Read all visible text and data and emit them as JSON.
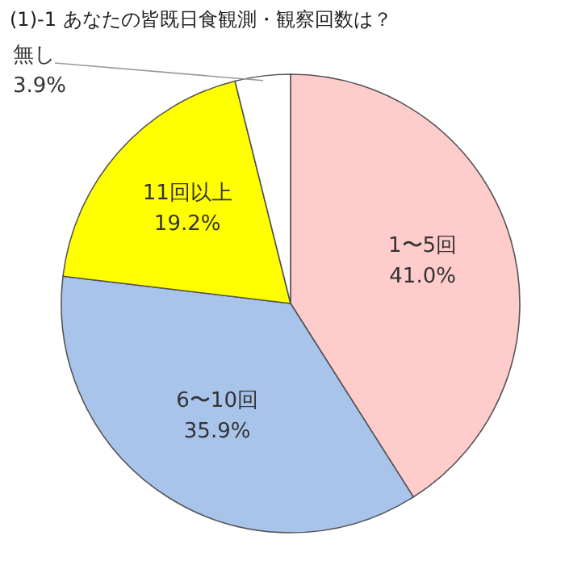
{
  "chart_data": {
    "type": "pie",
    "title": "(1)-1  あなたの皆既日食観測・観察回数は？",
    "categories": [
      "1〜5回",
      "6〜10回",
      "11回以上",
      "無し"
    ],
    "values": [
      41.0,
      35.9,
      19.2,
      3.9
    ],
    "colors": [
      "#ffcccc",
      "#a9c4ea",
      "#ffff00",
      "#ffffff"
    ],
    "value_labels": [
      "41.0%",
      "35.9%",
      "19.2%",
      "3.9%"
    ]
  }
}
